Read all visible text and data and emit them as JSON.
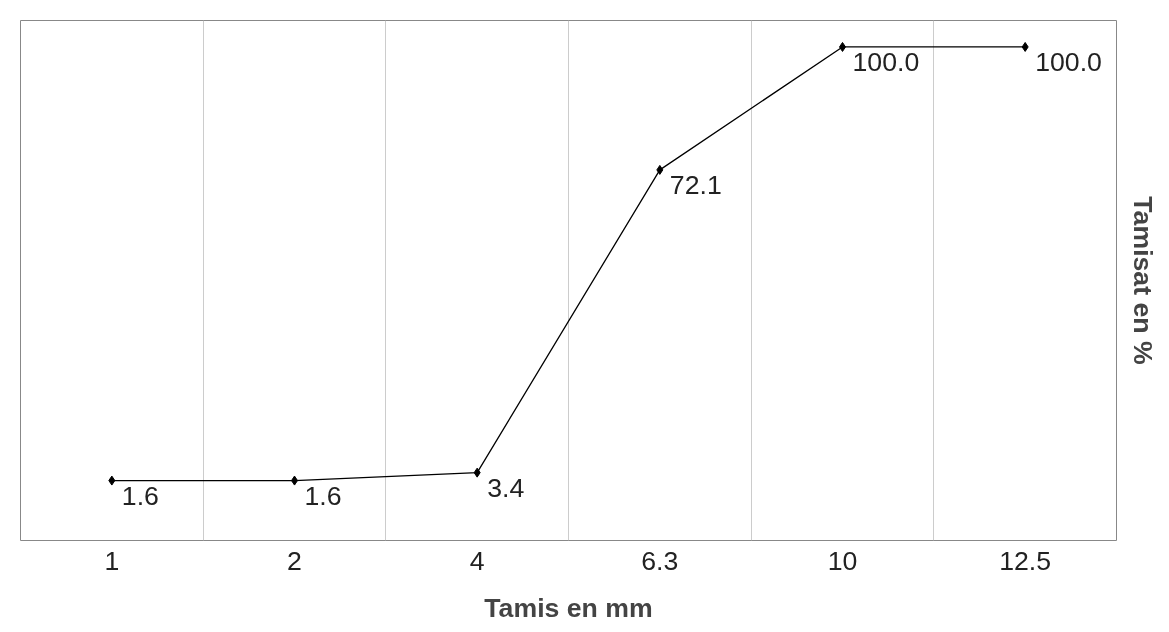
{
  "chart_data": {
    "type": "line",
    "xlabel": "Tamis en mm",
    "ylabel": "Tamisat en %",
    "categories": [
      "1",
      "2",
      "4",
      "6.3",
      "10",
      "12.5"
    ],
    "values": [
      1.6,
      1.6,
      3.4,
      72.1,
      100.0,
      100.0
    ],
    "value_labels": [
      "1.6",
      "1.6",
      "3.4",
      "72.1",
      "100.0",
      "100.0"
    ],
    "color": "#000000",
    "ylim": [
      -12,
      106
    ],
    "tick_labels": "x",
    "grid": "x",
    "marker": "diamond",
    "line_style": "solid"
  }
}
